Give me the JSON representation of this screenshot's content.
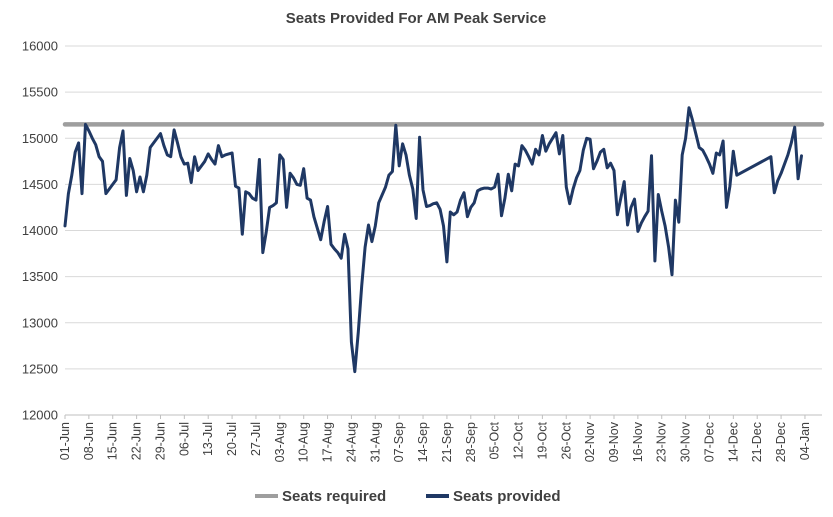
{
  "chart_data": {
    "type": "line",
    "title": "Seats Provided For AM Peak Service",
    "xlabel": "",
    "ylabel": "",
    "ylim": [
      12000,
      16000
    ],
    "yticks": [
      12000,
      12500,
      13000,
      13500,
      14000,
      14500,
      15000,
      15500,
      16000
    ],
    "grid": true,
    "legend_position": "bottom",
    "x_tick_labels": [
      "01-Jun",
      "08-Jun",
      "15-Jun",
      "22-Jun",
      "29-Jun",
      "06-Jul",
      "13-Jul",
      "20-Jul",
      "27-Jul",
      "03-Aug",
      "10-Aug",
      "17-Aug",
      "24-Aug",
      "31-Aug",
      "07-Sep",
      "14-Sep",
      "21-Sep",
      "28-Sep",
      "05-Oct",
      "12-Oct",
      "19-Oct",
      "26-Oct",
      "02-Nov",
      "09-Nov",
      "16-Nov",
      "23-Nov",
      "30-Nov",
      "07-Dec",
      "14-Dec",
      "21-Dec",
      "28-Dec",
      "04-Jan"
    ],
    "x_range_days": [
      0,
      222
    ],
    "series": [
      {
        "name": "Seats required",
        "color": "#9e9e9e",
        "points": [
          [
            0,
            15150
          ],
          [
            222,
            15150
          ]
        ]
      },
      {
        "name": "Seats provided",
        "color": "#1f3864",
        "points": [
          [
            0,
            14050
          ],
          [
            1,
            14400
          ],
          [
            2,
            14600
          ],
          [
            3,
            14850
          ],
          [
            4,
            14950
          ],
          [
            5,
            14400
          ],
          [
            6,
            15150
          ],
          [
            7,
            15080
          ],
          [
            8,
            15000
          ],
          [
            9,
            14930
          ],
          [
            10,
            14800
          ],
          [
            11,
            14750
          ],
          [
            12,
            14400
          ],
          [
            13,
            14450
          ],
          [
            14,
            14500
          ],
          [
            15,
            14550
          ],
          [
            16,
            14900
          ],
          [
            17,
            15080
          ],
          [
            18,
            14380
          ],
          [
            19,
            14780
          ],
          [
            20,
            14650
          ],
          [
            21,
            14420
          ],
          [
            22,
            14580
          ],
          [
            23,
            14420
          ],
          [
            24,
            14600
          ],
          [
            25,
            14900
          ],
          [
            28,
            15050
          ],
          [
            29,
            14920
          ],
          [
            30,
            14820
          ],
          [
            31,
            14800
          ],
          [
            32,
            15090
          ],
          [
            33,
            14950
          ],
          [
            34,
            14800
          ],
          [
            35,
            14720
          ],
          [
            36,
            14730
          ],
          [
            37,
            14520
          ],
          [
            38,
            14800
          ],
          [
            39,
            14650
          ],
          [
            41,
            14750
          ],
          [
            42,
            14830
          ],
          [
            43,
            14770
          ],
          [
            44,
            14720
          ],
          [
            45,
            14920
          ],
          [
            46,
            14800
          ],
          [
            47,
            14820
          ],
          [
            48,
            14830
          ],
          [
            49,
            14840
          ],
          [
            50,
            14480
          ],
          [
            51,
            14460
          ],
          [
            52,
            13960
          ],
          [
            53,
            14420
          ],
          [
            54,
            14400
          ],
          [
            55,
            14350
          ],
          [
            56,
            14330
          ],
          [
            57,
            14770
          ],
          [
            58,
            13760
          ],
          [
            59,
            13980
          ],
          [
            60,
            14250
          ],
          [
            61,
            14270
          ],
          [
            62,
            14300
          ],
          [
            63,
            14820
          ],
          [
            64,
            14770
          ],
          [
            65,
            14250
          ],
          [
            66,
            14620
          ],
          [
            67,
            14570
          ],
          [
            68,
            14500
          ],
          [
            69,
            14490
          ],
          [
            70,
            14670
          ],
          [
            71,
            14350
          ],
          [
            72,
            14330
          ],
          [
            73,
            14150
          ],
          [
            75,
            13900
          ],
          [
            76,
            14100
          ],
          [
            77,
            14260
          ],
          [
            78,
            13850
          ],
          [
            79,
            13800
          ],
          [
            80,
            13760
          ],
          [
            81,
            13700
          ],
          [
            82,
            13960
          ],
          [
            83,
            13800
          ],
          [
            84,
            12790
          ],
          [
            85,
            12470
          ],
          [
            86,
            12900
          ],
          [
            87,
            13400
          ],
          [
            88,
            13820
          ],
          [
            89,
            14060
          ],
          [
            90,
            13880
          ],
          [
            91,
            14050
          ],
          [
            92,
            14300
          ],
          [
            94,
            14470
          ],
          [
            95,
            14600
          ],
          [
            96,
            14640
          ],
          [
            97,
            15140
          ],
          [
            98,
            14700
          ],
          [
            99,
            14940
          ],
          [
            100,
            14820
          ],
          [
            101,
            14600
          ],
          [
            102,
            14450
          ],
          [
            103,
            14130
          ],
          [
            104,
            15010
          ],
          [
            105,
            14440
          ],
          [
            106,
            14260
          ],
          [
            107,
            14270
          ],
          [
            108,
            14290
          ],
          [
            109,
            14300
          ],
          [
            110,
            14230
          ],
          [
            111,
            14050
          ],
          [
            112,
            13660
          ],
          [
            113,
            14200
          ],
          [
            114,
            14170
          ],
          [
            115,
            14200
          ],
          [
            116,
            14330
          ],
          [
            117,
            14410
          ],
          [
            118,
            14150
          ],
          [
            119,
            14250
          ],
          [
            120,
            14300
          ],
          [
            121,
            14430
          ],
          [
            122,
            14450
          ],
          [
            123,
            14460
          ],
          [
            124,
            14460
          ],
          [
            125,
            14450
          ],
          [
            126,
            14470
          ],
          [
            127,
            14610
          ],
          [
            128,
            14160
          ],
          [
            129,
            14350
          ],
          [
            130,
            14610
          ],
          [
            131,
            14430
          ],
          [
            132,
            14720
          ],
          [
            133,
            14700
          ],
          [
            134,
            14920
          ],
          [
            135,
            14870
          ],
          [
            136,
            14800
          ],
          [
            137,
            14720
          ],
          [
            138,
            14880
          ],
          [
            139,
            14820
          ],
          [
            140,
            15030
          ],
          [
            141,
            14860
          ],
          [
            142,
            14940
          ],
          [
            144,
            15060
          ],
          [
            145,
            14830
          ],
          [
            146,
            15030
          ],
          [
            147,
            14470
          ],
          [
            148,
            14290
          ],
          [
            149,
            14450
          ],
          [
            150,
            14570
          ],
          [
            151,
            14650
          ],
          [
            152,
            14870
          ],
          [
            153,
            15000
          ],
          [
            154,
            14990
          ],
          [
            155,
            14670
          ],
          [
            156,
            14750
          ],
          [
            157,
            14850
          ],
          [
            158,
            14880
          ],
          [
            159,
            14680
          ],
          [
            160,
            14730
          ],
          [
            161,
            14650
          ],
          [
            162,
            14170
          ],
          [
            163,
            14350
          ],
          [
            164,
            14530
          ],
          [
            165,
            14060
          ],
          [
            166,
            14250
          ],
          [
            167,
            14340
          ],
          [
            168,
            13990
          ],
          [
            169,
            14080
          ],
          [
            170,
            14150
          ],
          [
            171,
            14210
          ],
          [
            172,
            14810
          ],
          [
            173,
            13670
          ],
          [
            174,
            14390
          ],
          [
            175,
            14210
          ],
          [
            176,
            14050
          ],
          [
            177,
            13820
          ],
          [
            178,
            13520
          ],
          [
            179,
            14330
          ],
          [
            180,
            14090
          ],
          [
            181,
            14820
          ],
          [
            182,
            15000
          ],
          [
            183,
            15330
          ],
          [
            184,
            15200
          ],
          [
            185,
            15050
          ],
          [
            186,
            14900
          ],
          [
            187,
            14870
          ],
          [
            188,
            14800
          ],
          [
            189,
            14720
          ],
          [
            190,
            14620
          ],
          [
            191,
            14840
          ],
          [
            192,
            14820
          ],
          [
            193,
            14970
          ],
          [
            194,
            14250
          ],
          [
            195,
            14480
          ],
          [
            196,
            14860
          ],
          [
            197,
            14600
          ],
          [
            207,
            14800
          ],
          [
            208,
            14410
          ],
          [
            209,
            14540
          ],
          [
            210,
            14620
          ],
          [
            212,
            14820
          ],
          [
            213,
            14950
          ],
          [
            214,
            15120
          ],
          [
            215,
            14560
          ],
          [
            216,
            14810
          ]
        ]
      }
    ]
  }
}
